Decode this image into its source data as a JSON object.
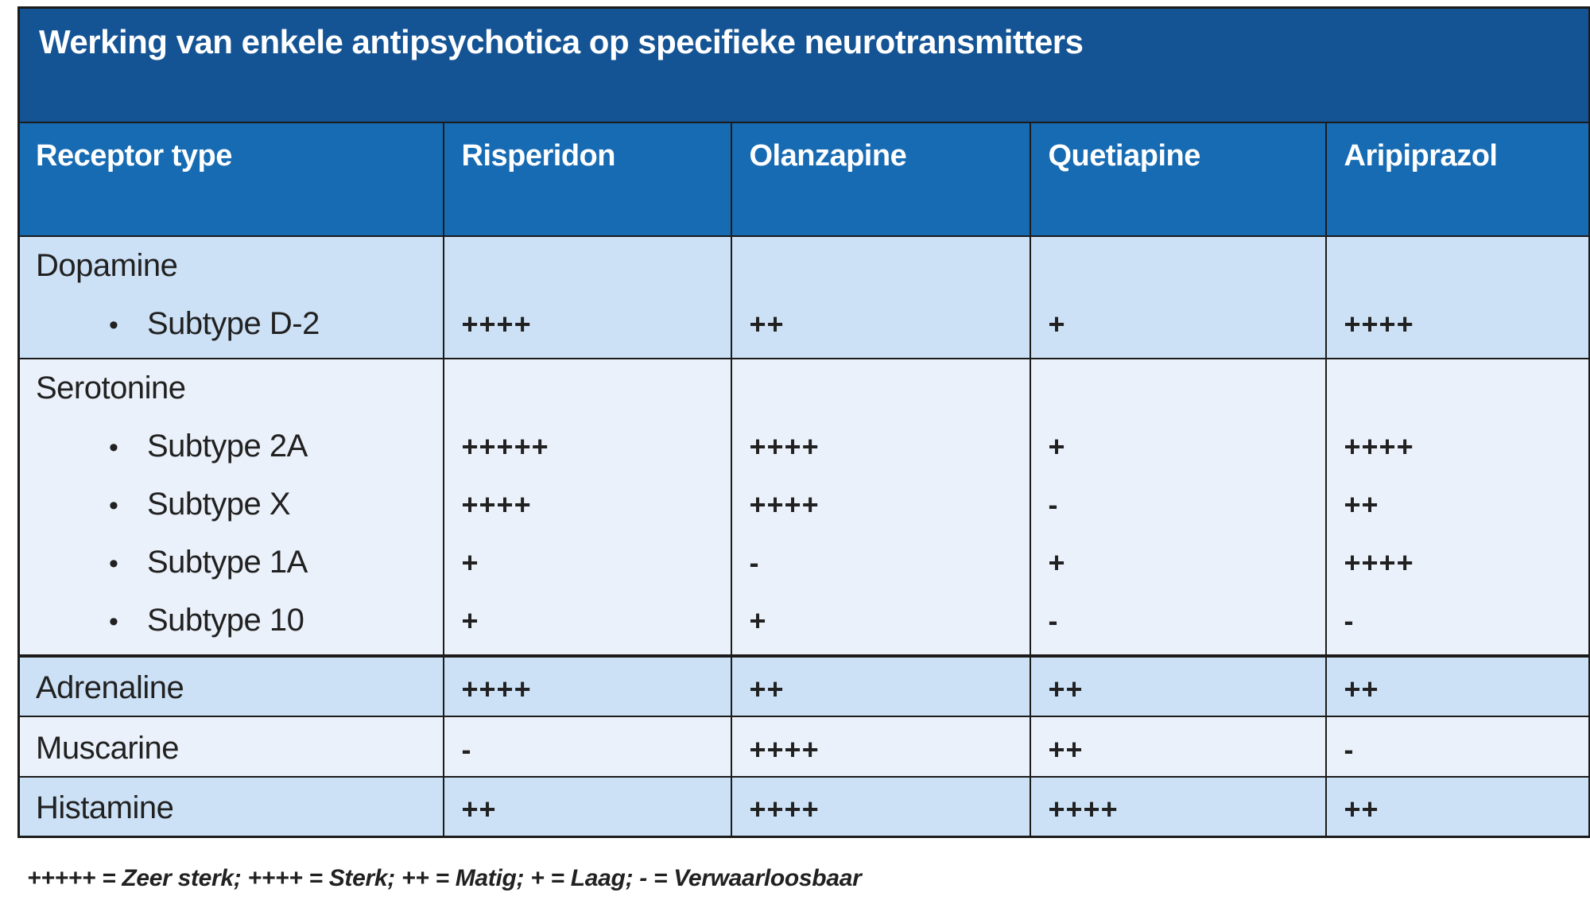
{
  "table": {
    "title": "Werking van enkele antipsychotica op specifieke neurotransmitters",
    "columns": [
      "Receptor type",
      "Risperidon",
      "Olanzapine",
      "Quetiapine",
      "Aripiprazol"
    ],
    "groups": [
      {
        "label": "Dopamine",
        "subtypes": [
          {
            "label": "Subtype D-2",
            "values": [
              "++++",
              "++",
              "+",
              "++++"
            ]
          }
        ]
      },
      {
        "label": "Serotonine",
        "subtypes": [
          {
            "label": "Subtype 2A",
            "values": [
              "+++++",
              "++++",
              "+",
              "++++"
            ]
          },
          {
            "label": "Subtype X",
            "values": [
              "++++",
              "++++",
              "-",
              "++"
            ]
          },
          {
            "label": "Subtype 1A",
            "values": [
              "+",
              "-",
              "+",
              "++++"
            ]
          },
          {
            "label": "Subtype 10",
            "values": [
              "+",
              "+",
              "-",
              "-"
            ]
          }
        ]
      }
    ],
    "rows": [
      {
        "label": "Adrenaline",
        "values": [
          "++++",
          "++",
          "++",
          "++"
        ]
      },
      {
        "label": "Muscarine",
        "values": [
          "-",
          "++++",
          "++",
          "-"
        ]
      },
      {
        "label": "Histamine",
        "values": [
          "++",
          "++++",
          "++++",
          "++"
        ]
      }
    ],
    "legend": "+++++ = Zeer sterk; ++++ = Sterk; ++ = Matig; + = Laag; - = Verwaarloosbaar"
  },
  "colors": {
    "title_bg": "#155494",
    "header_bg": "#176BB3",
    "band_dark": "#CCE1F6",
    "band_light": "#EBF1FA",
    "border": "#1b1b1b",
    "text": "#212121",
    "header_text": "#ffffff"
  }
}
